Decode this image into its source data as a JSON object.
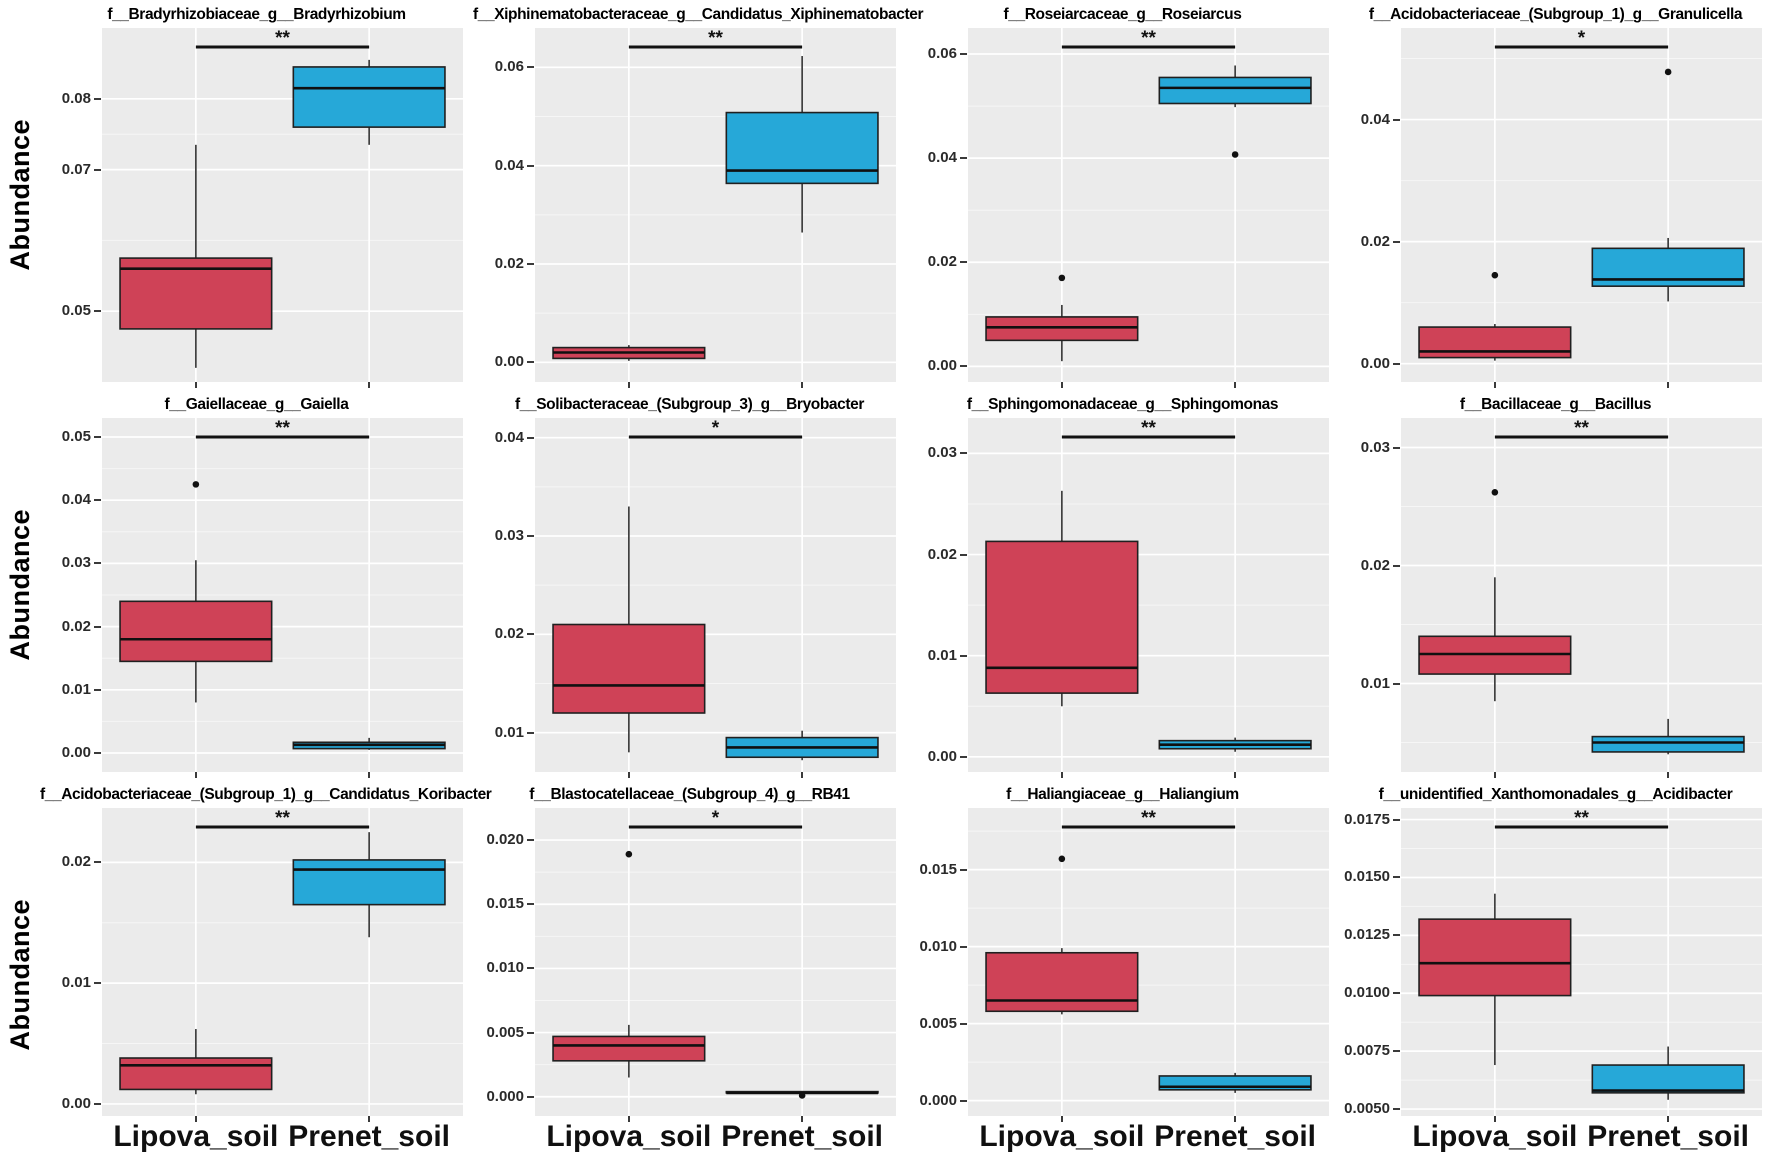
{
  "figure": {
    "ylabel": "Abundance",
    "x_categories": [
      "Lipova_soil",
      "Prenet_soil"
    ],
    "colors": {
      "lipova_fill": "#cf4257",
      "prenet_fill": "#26a8d8",
      "box_stroke": "#202020",
      "whisker": "#404040",
      "panel_bg": "#ebebeb",
      "grid_major": "#ffffff",
      "grid_minor": "#f6f6f6",
      "text": "#111111"
    }
  },
  "chart_data": {
    "type": "boxplot-grid",
    "rows": 3,
    "cols": 4,
    "x_categories": [
      "Lipova_soil",
      "Prenet_soil"
    ],
    "ylabel": "Abundance",
    "panels": [
      {
        "title": "f__Bradyrhizobiaceae_g__Bradyrhizobium",
        "significance": "**",
        "ylim": [
          0.04,
          0.09
        ],
        "ytick_values": [
          0.05,
          0.07,
          0.08
        ],
        "ytick_labels": [
          "0.05",
          "0.07",
          "0.08"
        ],
        "boxes": [
          {
            "group": "Lipova_soil",
            "min": 0.042,
            "q1": 0.0475,
            "median": 0.056,
            "q3": 0.0575,
            "max": 0.0735,
            "outliers": []
          },
          {
            "group": "Prenet_soil",
            "min": 0.0735,
            "q1": 0.076,
            "median": 0.0815,
            "q3": 0.0845,
            "max": 0.0855,
            "outliers": []
          }
        ]
      },
      {
        "title": "f__Xiphinematobacteraceae_g__Candidatus_Xiphinematobacter",
        "significance": "**",
        "ylim": [
          -0.004,
          0.068
        ],
        "ytick_values": [
          0.0,
          0.02,
          0.04,
          0.06
        ],
        "ytick_labels": [
          "0.00",
          "0.02",
          "0.04",
          "0.06"
        ],
        "boxes": [
          {
            "group": "Lipova_soil",
            "min": 0.0003,
            "q1": 0.0008,
            "median": 0.002,
            "q3": 0.003,
            "max": 0.0035,
            "outliers": []
          },
          {
            "group": "Prenet_soil",
            "min": 0.0264,
            "q1": 0.0364,
            "median": 0.039,
            "q3": 0.0508,
            "max": 0.0623,
            "outliers": []
          }
        ]
      },
      {
        "title": "f__Roseiarcaceae_g__Roseiarcus",
        "significance": "**",
        "ylim": [
          -0.003,
          0.065
        ],
        "ytick_values": [
          0.0,
          0.02,
          0.04,
          0.06
        ],
        "ytick_labels": [
          "0.00",
          "0.02",
          "0.04",
          "0.06"
        ],
        "boxes": [
          {
            "group": "Lipova_soil",
            "min": 0.001,
            "q1": 0.005,
            "median": 0.0075,
            "q3": 0.0095,
            "max": 0.0118,
            "outliers": [
              0.017
            ]
          },
          {
            "group": "Prenet_soil",
            "min": 0.0498,
            "q1": 0.0505,
            "median": 0.0535,
            "q3": 0.0555,
            "max": 0.0578,
            "outliers": [
              0.0407
            ]
          }
        ]
      },
      {
        "title": "f__Acidobacteriaceae_(Subgroup_1)_g__Granulicella",
        "significance": "*",
        "ylim": [
          -0.003,
          0.055
        ],
        "ytick_values": [
          0.0,
          0.02,
          0.04
        ],
        "ytick_labels": [
          "0.00",
          "0.02",
          "0.04"
        ],
        "boxes": [
          {
            "group": "Lipova_soil",
            "min": 0.0005,
            "q1": 0.001,
            "median": 0.002,
            "q3": 0.006,
            "max": 0.0065,
            "outliers": [
              0.0145
            ]
          },
          {
            "group": "Prenet_soil",
            "min": 0.0102,
            "q1": 0.0127,
            "median": 0.0138,
            "q3": 0.0189,
            "max": 0.0206,
            "outliers": [
              0.0478
            ]
          }
        ]
      },
      {
        "title": "f__Gaiellaceae_g__Gaiella",
        "significance": "**",
        "ylim": [
          -0.003,
          0.053
        ],
        "ytick_values": [
          0.0,
          0.01,
          0.02,
          0.03,
          0.04,
          0.05
        ],
        "ytick_labels": [
          "0.00",
          "0.01",
          "0.02",
          "0.03",
          "0.04",
          "0.05"
        ],
        "boxes": [
          {
            "group": "Lipova_soil",
            "min": 0.008,
            "q1": 0.0145,
            "median": 0.018,
            "q3": 0.024,
            "max": 0.0305,
            "outliers": [
              0.0425
            ]
          },
          {
            "group": "Prenet_soil",
            "min": 0.0005,
            "q1": 0.0007,
            "median": 0.0013,
            "q3": 0.0017,
            "max": 0.0024,
            "outliers": []
          }
        ]
      },
      {
        "title": "f__Solibacteraceae_(Subgroup_3)_g__Bryobacter",
        "significance": "*",
        "ylim": [
          0.006,
          0.042
        ],
        "ytick_values": [
          0.01,
          0.02,
          0.03,
          0.04
        ],
        "ytick_labels": [
          "0.01",
          "0.02",
          "0.03",
          "0.04"
        ],
        "boxes": [
          {
            "group": "Lipova_soil",
            "min": 0.008,
            "q1": 0.012,
            "median": 0.0148,
            "q3": 0.021,
            "max": 0.033,
            "outliers": []
          },
          {
            "group": "Prenet_soil",
            "min": 0.0072,
            "q1": 0.0075,
            "median": 0.0085,
            "q3": 0.0095,
            "max": 0.0102,
            "outliers": []
          }
        ]
      },
      {
        "title": "f__Sphingomonadaceae_g__Sphingomonas",
        "significance": "**",
        "ylim": [
          -0.0015,
          0.0335
        ],
        "ytick_values": [
          0.0,
          0.01,
          0.02,
          0.03
        ],
        "ytick_labels": [
          "0.00",
          "0.01",
          "0.02",
          "0.03"
        ],
        "boxes": [
          {
            "group": "Lipova_soil",
            "min": 0.005,
            "q1": 0.0063,
            "median": 0.0088,
            "q3": 0.0213,
            "max": 0.0263,
            "outliers": []
          },
          {
            "group": "Prenet_soil",
            "min": 0.0005,
            "q1": 0.0008,
            "median": 0.0012,
            "q3": 0.0016,
            "max": 0.0019,
            "outliers": []
          }
        ]
      },
      {
        "title": "f__Bacillaceae_g__Bacillus",
        "significance": "**",
        "ylim": [
          0.0025,
          0.0325
        ],
        "ytick_values": [
          0.01,
          0.02,
          0.03
        ],
        "ytick_labels": [
          "0.01",
          "0.02",
          "0.03"
        ],
        "boxes": [
          {
            "group": "Lipova_soil",
            "min": 0.0085,
            "q1": 0.0108,
            "median": 0.0125,
            "q3": 0.014,
            "max": 0.019,
            "outliers": [
              0.0262
            ]
          },
          {
            "group": "Prenet_soil",
            "min": 0.004,
            "q1": 0.0042,
            "median": 0.005,
            "q3": 0.0055,
            "max": 0.007,
            "outliers": []
          }
        ]
      },
      {
        "title": "f__Acidobacteriaceae_(Subgroup_1)_g__Candidatus_Koribacter",
        "significance": "**",
        "ylim": [
          -0.001,
          0.0245
        ],
        "ytick_values": [
          0.0,
          0.01,
          0.02
        ],
        "ytick_labels": [
          "0.00",
          "0.01",
          "0.02"
        ],
        "boxes": [
          {
            "group": "Lipova_soil",
            "min": 0.0008,
            "q1": 0.0012,
            "median": 0.0032,
            "q3": 0.0038,
            "max": 0.0062,
            "outliers": []
          },
          {
            "group": "Prenet_soil",
            "min": 0.0138,
            "q1": 0.0165,
            "median": 0.0194,
            "q3": 0.0202,
            "max": 0.0225,
            "outliers": []
          }
        ]
      },
      {
        "title": "f__Blastocatellaceae_(Subgroup_4)_g__RB41",
        "significance": "*",
        "ylim": [
          -0.0015,
          0.0225
        ],
        "ytick_values": [
          0.0,
          0.005,
          0.01,
          0.015,
          0.02
        ],
        "ytick_labels": [
          "0.000",
          "0.005",
          "0.010",
          "0.015",
          "0.020"
        ],
        "boxes": [
          {
            "group": "Lipova_soil",
            "min": 0.0015,
            "q1": 0.0028,
            "median": 0.004,
            "q3": 0.0047,
            "max": 0.0056,
            "outliers": [
              0.0189
            ]
          },
          {
            "group": "Prenet_soil",
            "min": 0.0002,
            "q1": 0.0003,
            "median": 0.0003,
            "q3": 0.0004,
            "max": 0.0004,
            "outliers": [
              0.0001
            ]
          }
        ]
      },
      {
        "title": "f__Haliangiaceae_g__Haliangium",
        "significance": "**",
        "ylim": [
          -0.001,
          0.019
        ],
        "ytick_values": [
          0.0,
          0.005,
          0.01,
          0.015
        ],
        "ytick_labels": [
          "0.000",
          "0.005",
          "0.010",
          "0.015"
        ],
        "boxes": [
          {
            "group": "Lipova_soil",
            "min": 0.0056,
            "q1": 0.0058,
            "median": 0.0065,
            "q3": 0.0096,
            "max": 0.0099,
            "outliers": [
              0.0157
            ]
          },
          {
            "group": "Prenet_soil",
            "min": 0.0005,
            "q1": 0.0007,
            "median": 0.0009,
            "q3": 0.0016,
            "max": 0.0018,
            "outliers": []
          }
        ]
      },
      {
        "title": "f__unidentified_Xanthomonadales_g__Acidibacter",
        "significance": "**",
        "ylim": [
          0.0047,
          0.018
        ],
        "ytick_values": [
          0.005,
          0.0075,
          0.01,
          0.0125,
          0.015,
          0.0175
        ],
        "ytick_labels": [
          "0.0050",
          "0.0075",
          "0.0100",
          "0.0125",
          "0.0150",
          "0.0175"
        ],
        "boxes": [
          {
            "group": "Lipova_soil",
            "min": 0.0069,
            "q1": 0.0099,
            "median": 0.0113,
            "q3": 0.0132,
            "max": 0.0143,
            "outliers": []
          },
          {
            "group": "Prenet_soil",
            "min": 0.0054,
            "q1": 0.0057,
            "median": 0.0058,
            "q3": 0.0069,
            "max": 0.0077,
            "outliers": []
          }
        ]
      }
    ]
  }
}
